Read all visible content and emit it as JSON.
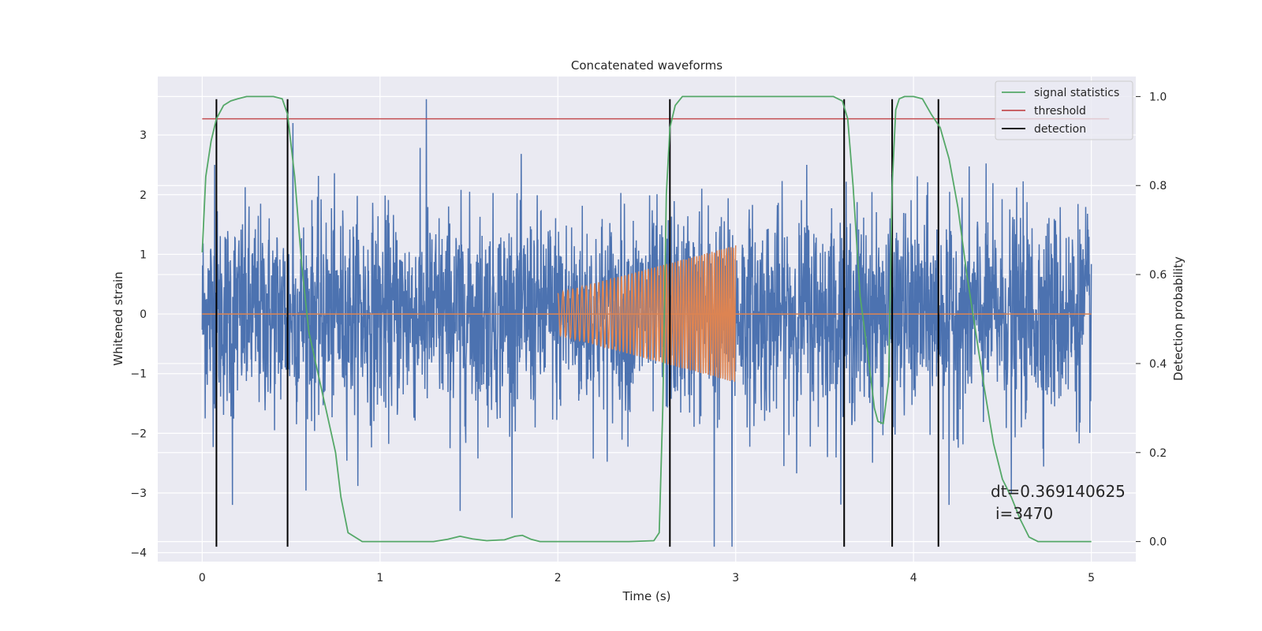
{
  "chart_data": {
    "type": "line",
    "title": "Concatenated waveforms",
    "xlabel": "Time (s)",
    "ylabel_left": "Whitened strain",
    "ylabel_right": "Detection probability",
    "xlim": [
      -0.25,
      5.25
    ],
    "ylim_left": [
      -4.15,
      3.98
    ],
    "ylim_right": [
      -0.045,
      1.045
    ],
    "xticks": [
      0,
      1,
      2,
      3,
      4,
      5
    ],
    "xtick_labels": [
      "0",
      "1",
      "2",
      "3",
      "4",
      "5"
    ],
    "yticks_left": [
      -4,
      -3,
      -2,
      -1,
      0,
      1,
      2,
      3
    ],
    "ytick_labels_left": [
      "−4",
      "−3",
      "−2",
      "−1",
      "0",
      "1",
      "2",
      "3"
    ],
    "yticks_right": [
      0.0,
      0.2,
      0.4,
      0.6,
      0.8,
      1.0
    ],
    "ytick_labels_right": [
      "0.0",
      "0.2",
      "0.4",
      "0.6",
      "0.8",
      "1.0"
    ],
    "grid": true,
    "legend": {
      "placement": "top-right",
      "entries": [
        "signal statistics",
        "threshold",
        "detection"
      ]
    },
    "colors": {
      "noise": "#4c72b0",
      "injected_signal": "#dd8452",
      "signal_statistics": "#55a868",
      "threshold": "#c44e52",
      "detection": "#000000",
      "plot_background": "#eaeaf2",
      "grid": "#ffffff"
    },
    "series": [
      {
        "name": "",
        "role": "noise",
        "axis": "left",
        "time_range": [
          0,
          5
        ],
        "approx_range": [
          -3.9,
          3.6
        ],
        "peaks": [
          [
            1.26,
            3.6
          ],
          [
            0.07,
            2.5
          ],
          [
            0.51,
            3.2
          ],
          [
            2.81,
            2.1
          ],
          [
            3.4,
            2.5
          ],
          [
            1.45,
            -3.3
          ],
          [
            2.88,
            -3.9
          ],
          [
            2.98,
            -3.9
          ],
          [
            0.17,
            -3.2
          ],
          [
            4.55,
            -3.0
          ],
          [
            4.2,
            -3.2
          ]
        ]
      },
      {
        "name": "",
        "role": "injected_signal",
        "axis": "left",
        "time_range": [
          2.0,
          3.0
        ],
        "start_amplitude": 0.35,
        "end_amplitude": 1.15
      },
      {
        "name": "signal statistics",
        "axis": "right",
        "x": [
          0,
          0.02,
          0.05,
          0.08,
          0.12,
          0.16,
          0.2,
          0.25,
          0.3,
          0.4,
          0.45,
          0.48,
          0.52,
          0.56,
          0.6,
          0.65,
          0.7,
          0.75,
          0.78,
          0.82,
          0.9,
          1.1,
          1.3,
          1.38,
          1.45,
          1.52,
          1.6,
          1.7,
          1.76,
          1.8,
          1.85,
          1.9,
          2.0,
          2.2,
          2.4,
          2.54,
          2.57,
          2.59,
          2.61,
          2.63,
          2.66,
          2.7,
          2.75,
          2.8,
          3.0,
          3.3,
          3.55,
          3.6,
          3.63,
          3.66,
          3.7,
          3.75,
          3.78,
          3.8,
          3.83,
          3.86,
          3.88,
          3.9,
          3.92,
          3.95,
          4.0,
          4.05,
          4.1,
          4.15,
          4.2,
          4.25,
          4.3,
          4.35,
          4.4,
          4.45,
          4.5,
          4.55,
          4.6,
          4.65,
          4.7,
          4.8,
          5.0
        ],
        "y": [
          0.65,
          0.82,
          0.9,
          0.95,
          0.98,
          0.99,
          0.995,
          1.0,
          1.0,
          1.0,
          0.995,
          0.96,
          0.82,
          0.62,
          0.47,
          0.38,
          0.29,
          0.2,
          0.1,
          0.02,
          0.0,
          0.0,
          0.0,
          0.005,
          0.012,
          0.006,
          0.002,
          0.004,
          0.012,
          0.014,
          0.005,
          0.0,
          0.0,
          0.0,
          0.0,
          0.002,
          0.02,
          0.3,
          0.78,
          0.93,
          0.98,
          1.0,
          1.0,
          1.0,
          1.0,
          1.0,
          1.0,
          0.99,
          0.95,
          0.8,
          0.55,
          0.4,
          0.3,
          0.27,
          0.265,
          0.36,
          0.8,
          0.97,
          0.995,
          1.0,
          1.0,
          0.995,
          0.96,
          0.93,
          0.86,
          0.75,
          0.6,
          0.47,
          0.34,
          0.22,
          0.14,
          0.1,
          0.05,
          0.01,
          0.0,
          0.0,
          0.0
        ]
      },
      {
        "name": "threshold",
        "axis": "right",
        "x": [
          0,
          5.1
        ],
        "y": [
          0.95,
          0.95
        ]
      }
    ],
    "detections": [
      0.08,
      0.48,
      2.63,
      3.61,
      3.88,
      4.14
    ],
    "detection_range": [
      -3.9,
      3.6
    ],
    "annotation_lines": [
      "dt=0.369140625",
      "i=3470"
    ]
  }
}
